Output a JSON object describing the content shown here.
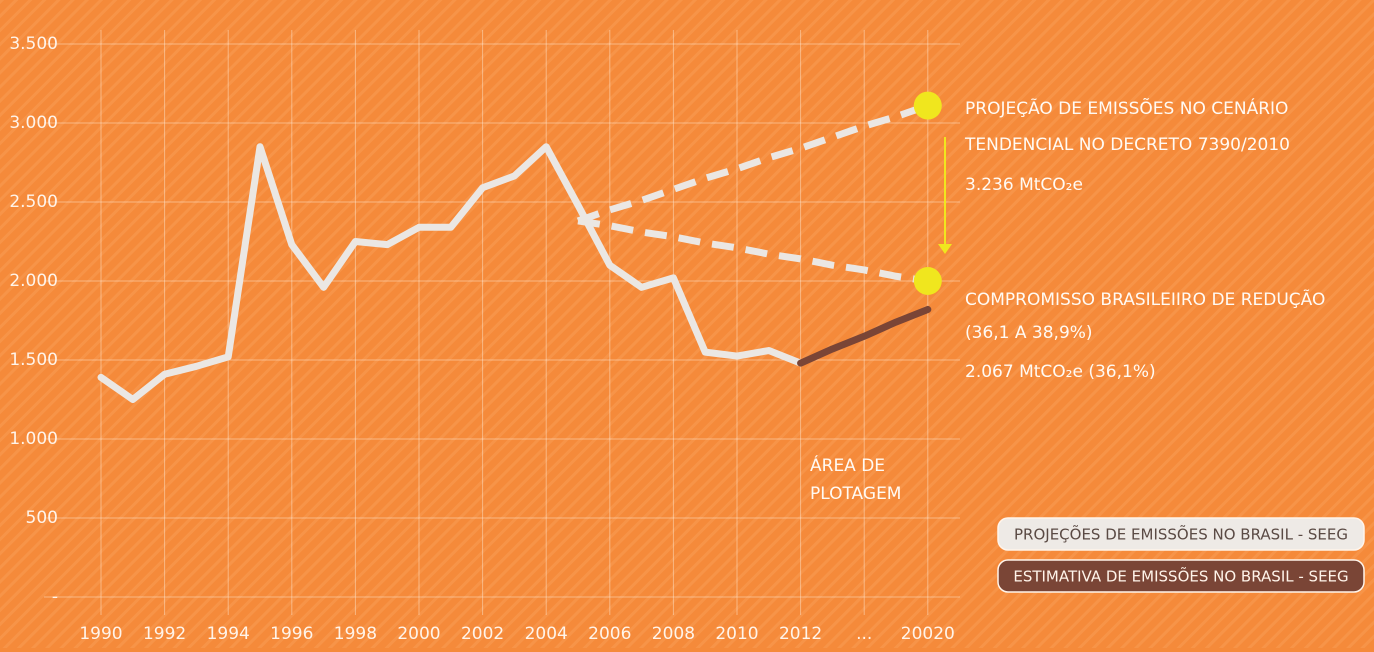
{
  "chart_data": {
    "type": "line",
    "categories": [
      "1990",
      null,
      "1992",
      null,
      "1994",
      null,
      "1996",
      null,
      "1998",
      null,
      "2000",
      null,
      "2002",
      null,
      "2004",
      null,
      "2006",
      null,
      "2008",
      null,
      "2010",
      null,
      "2012",
      null,
      "...",
      null,
      "20020"
    ],
    "series": [
      {
        "name": "PROJEÇÕES DE EMISSÕES NO BRASIL - SEEG",
        "color": "#ebe7e3",
        "values": [
          1390,
          1250,
          1410,
          1460,
          1520,
          2850,
          2230,
          1960,
          2250,
          2230,
          2340,
          2340,
          2590,
          2665,
          2850,
          2480,
          2100,
          1960,
          2020,
          1550,
          1525,
          1560,
          1480,
          null,
          null,
          null,
          null
        ]
      },
      {
        "name": "ESTIMATIVA DE EMISSÕES NO BRASIL - SEEG",
        "color": "#7a4536",
        "values": [
          null,
          null,
          null,
          null,
          null,
          null,
          null,
          null,
          null,
          null,
          null,
          null,
          null,
          null,
          null,
          null,
          null,
          null,
          null,
          null,
          null,
          null,
          1480,
          1570,
          1650,
          1740,
          1820
        ]
      }
    ],
    "projections": [
      {
        "color": "#ebe7e3",
        "values": [
          null,
          null,
          null,
          null,
          null,
          null,
          null,
          null,
          null,
          null,
          null,
          null,
          null,
          null,
          null,
          2380,
          2450,
          2510,
          2580,
          2650,
          2710,
          2780,
          2840,
          2910,
          2980,
          3040,
          3110
        ]
      },
      {
        "color": "#ebe7e3",
        "values": [
          null,
          null,
          null,
          null,
          null,
          null,
          null,
          null,
          null,
          null,
          null,
          null,
          null,
          null,
          null,
          2380,
          2350,
          2310,
          2280,
          2240,
          2210,
          2170,
          2140,
          2100,
          2070,
          2030,
          2000
        ]
      }
    ],
    "marker_color": "#f0e61e",
    "arrow_color": "#f0e61e",
    "annotations": {
      "upper": [
        "PROJEÇÃO DE EMISSÕES NO CENÁRIO",
        "TENDENCIAL NO DECRETO 7390/2010",
        "3.236 MtCO₂e"
      ],
      "lower": [
        "COMPROMISSO BRASILEIIRO DE REDUÇÃO",
        "(36,1 A 38,9%)",
        "2.067 MtCO₂e  (36,1%)"
      ],
      "area": [
        "ÁREA DE",
        "PLOTAGEM"
      ]
    },
    "ylim": [
      0,
      3500
    ],
    "yticks": [
      {
        "value": 0,
        "label": "-"
      },
      500,
      {
        "value": 1000,
        "label": "1.000"
      },
      {
        "value": 1500,
        "label": "1.500"
      },
      {
        "value": 2000,
        "label": "2.000"
      },
      {
        "value": 2500,
        "label": "2.500"
      },
      {
        "value": 3000,
        "label": "3.000"
      },
      {
        "value": 3500,
        "label": "3.500"
      }
    ],
    "grid": true
  }
}
